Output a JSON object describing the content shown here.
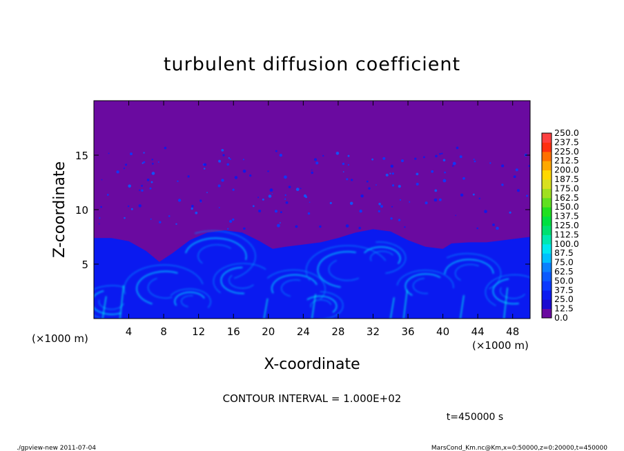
{
  "chart_data": {
    "type": "heatmap",
    "title": "turbulent diffusion coefficient",
    "xlabel": "X-coordinate",
    "ylabel": "Z-coordinate",
    "x_unit_label": "(×1000 m)",
    "y_unit_label": "(×1000 m)",
    "xlim": [
      0,
      50
    ],
    "ylim": [
      0,
      20
    ],
    "x_ticks": [
      4,
      8,
      12,
      16,
      20,
      24,
      28,
      32,
      36,
      40,
      44,
      48
    ],
    "y_ticks": [
      5,
      10,
      15
    ],
    "colorbar": {
      "levels": [
        0.0,
        12.5,
        25.0,
        37.5,
        50.0,
        62.5,
        75.0,
        87.5,
        100.0,
        112.5,
        125.0,
        137.5,
        150.0,
        162.5,
        175.0,
        187.5,
        200.0,
        212.5,
        225.0,
        237.5,
        250.0
      ],
      "labels": [
        "0.0",
        "12.5",
        "25.0",
        "37.5",
        "50.0",
        "62.5",
        "75.0",
        "87.5",
        "100.0",
        "112.5",
        "125.0",
        "137.5",
        "150.0",
        "162.5",
        "175.0",
        "187.5",
        "200.0",
        "212.5",
        "225.0",
        "237.5",
        "250.0"
      ],
      "colors": [
        "#6a0aa0",
        "#1a0ad0",
        "#0a1af0",
        "#0a3aff",
        "#0a5aff",
        "#0a80ff",
        "#00c0ff",
        "#00e8f0",
        "#00e8b0",
        "#00e070",
        "#00e040",
        "#20e020",
        "#60e020",
        "#a0e020",
        "#d8e020",
        "#ffd800",
        "#ffa800",
        "#ff7000",
        "#ff3010",
        "#ff4040",
        "#ff7070"
      ]
    },
    "background_value": 0.0,
    "mixed_layer_boundary": {
      "x": [
        0,
        2,
        4,
        6,
        7.5,
        9,
        11,
        13,
        15,
        17,
        19,
        20.5,
        22,
        24,
        26,
        28,
        30,
        32,
        34,
        36,
        38,
        40,
        41,
        43,
        45,
        47,
        50
      ],
      "z": [
        7.4,
        7.4,
        7.1,
        6.2,
        5.2,
        6.0,
        7.2,
        7.9,
        8.1,
        7.9,
        7.1,
        6.4,
        6.6,
        6.8,
        7.0,
        7.4,
        7.9,
        8.2,
        8.0,
        7.2,
        6.6,
        6.4,
        6.9,
        7.0,
        7.0,
        7.2,
        7.5
      ]
    },
    "contour_interval_text": "CONTOUR INTERVAL = 1.000E+02",
    "time_text": "t=450000 s"
  },
  "footer": {
    "left": "./gpview-new  2011-07-04",
    "right": "MarsCond_Km.nc@Km,x=0:50000,z=0:20000,t=450000"
  }
}
